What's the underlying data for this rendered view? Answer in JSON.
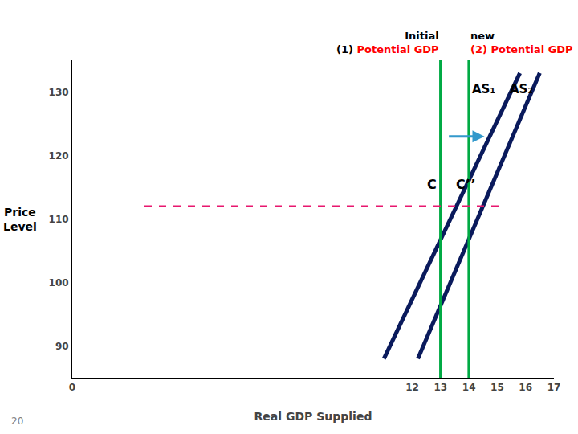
{
  "chart_data": {
    "type": "line",
    "xlabel": "Real GDP Supplied",
    "ylabel": "Price\nLevel",
    "xlim": [
      0,
      17
    ],
    "ylim": [
      85,
      135
    ],
    "xticks": [
      0,
      12,
      13,
      14,
      15,
      16,
      17
    ],
    "yticks": [
      90,
      100,
      110,
      120,
      130
    ],
    "grid": false,
    "series": [
      {
        "color": "#0a1a5c",
        "x": [
          11.0,
          15.8
        ],
        "values": [
          88,
          133
        ]
      },
      {
        "color": "#0a1a5c",
        "x": [
          12.2,
          16.5
        ],
        "values": [
          88,
          133
        ]
      }
    ],
    "vlines": {
      "color": "#00aa44",
      "lines": [
        {
          "x": 13,
          "label": [
            [
              {
                "text": "Initial",
                "color": "black"
              }
            ],
            [
              {
                "text": "(1)",
                "color": "black"
              },
              {
                "text": "Potential GDP",
                "color": "red"
              }
            ]
          ]
        },
        {
          "x": 14,
          "label": [
            [
              {
                "text": "new",
                "color": "black"
              }
            ],
            [
              {
                "text": "(2)",
                "color": "red"
              },
              {
                "text": "Potential GDP",
                "color": "red"
              }
            ]
          ]
        }
      ]
    },
    "hline": {
      "y": 112,
      "color": "#e8176e",
      "line_style": "dashed"
    },
    "arrow": {
      "from": [
        13.25,
        123
      ],
      "to": [
        14.55,
        123
      ],
      "color": "#3399cc"
    },
    "curve_labels": [
      {
        "text": "AS₁",
        "x": 14.05,
        "y": 130.5
      },
      {
        "text": "AS₂",
        "x": 15.38,
        "y": 130.5
      }
    ],
    "point_labels": [
      {
        "text": "C",
        "x": 12.7,
        "y": 115.5
      },
      {
        "text": "C’’",
        "x": 13.88,
        "y": 115.5
      }
    ],
    "footnote": "20"
  }
}
